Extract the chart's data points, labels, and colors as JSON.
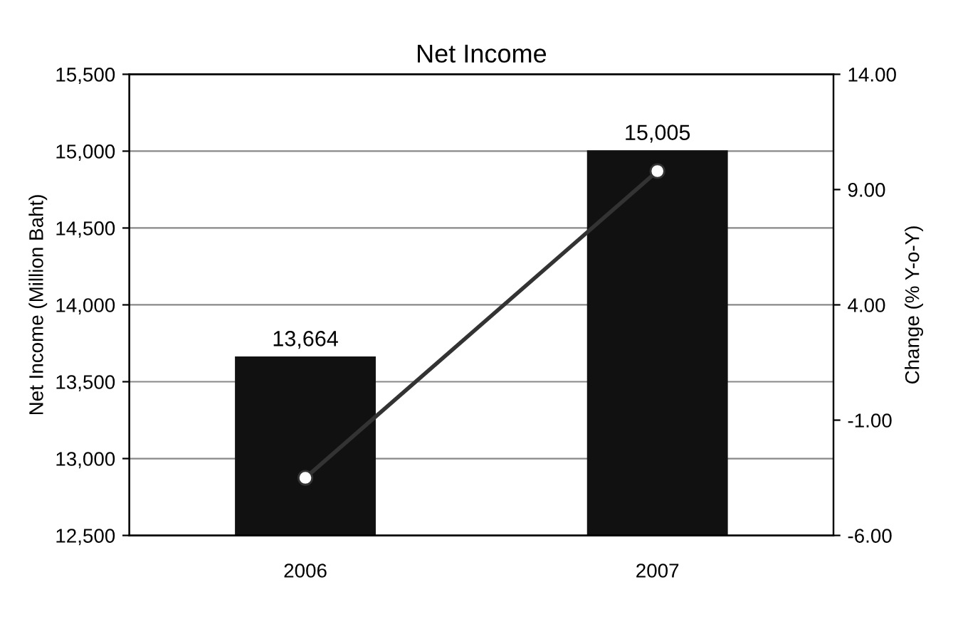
{
  "chart_data": {
    "type": "bar",
    "title": "Net Income",
    "categories": [
      "2006",
      "2007"
    ],
    "series": [
      {
        "color": "#111111",
        "values": [
          13664,
          15005
        ],
        "value_labels": [
          "13,664",
          "15,005"
        ]
      },
      {
        "type": "line",
        "axis": "y2",
        "color": "#333333",
        "values": [
          -3.5,
          9.8
        ]
      }
    ],
    "ylabel": "Net Income (Million Baht)",
    "y2label": "Change (% Y-o-Y)",
    "ylim": [
      12500,
      15500
    ],
    "yticks": [
      {
        "value": 12500,
        "label": "12,500"
      },
      {
        "value": 13000,
        "label": "13,000"
      },
      {
        "value": 13500,
        "label": "13,500"
      },
      {
        "value": 14000,
        "label": "14,000"
      },
      {
        "value": 14500,
        "label": "14,500"
      },
      {
        "value": 15000,
        "label": "15,000"
      },
      {
        "value": 15500,
        "label": "15,500"
      }
    ],
    "y2lim": [
      -6,
      14
    ],
    "y2ticks": [
      {
        "value": -6,
        "label": "-6.00"
      },
      {
        "value": -1,
        "label": "-1.00"
      },
      {
        "value": 4,
        "label": "4.00"
      },
      {
        "value": 9,
        "label": "9.00"
      },
      {
        "value": 14,
        "label": "14.00"
      }
    ],
    "grid": "y",
    "marker": "circle"
  }
}
